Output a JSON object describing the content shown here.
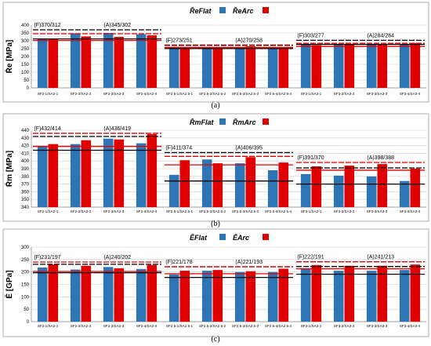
{
  "chart_data": [
    {
      "type": "bar",
      "panel_label": "(a)",
      "ylabel": "R̄e [MPa]",
      "ylim": [
        0,
        400
      ],
      "yticks": [
        0,
        50,
        100,
        150,
        200,
        250,
        300,
        350,
        400
      ],
      "grid": true,
      "legend_position": "top-center",
      "categories": [
        "SF2-1/SA2-1",
        "SF2-2/SA2-2",
        "SF2-3/SA2-3",
        "SF2-4/SA2-4",
        "SF2.5-1/SA2.5-1",
        "SF2.5-2/SA2.5-2",
        "SF2.5-3/SA2.5-3",
        "SF2.5-4/SA2.5-4",
        "SF3-1/SA3-1",
        "SF3-2/SA3-2",
        "SF3-3/SA3-3",
        "SF3-4/SA3-4"
      ],
      "series": [
        {
          "name": "R̄eFlat",
          "color": "#2E75B6",
          "values": [
            315,
            348,
            350,
            342,
            258,
            255,
            253,
            252,
            275,
            280,
            280,
            275
          ]
        },
        {
          "name": "R̄eArc",
          "color": "#E00000",
          "values": [
            310,
            328,
            325,
            335,
            257,
            253,
            265,
            260,
            272,
            275,
            276,
            285
          ]
        }
      ],
      "annotations": [
        {
          "label": "(F)370/312",
          "group": 0
        },
        {
          "label": "(A)345/302",
          "group": 0
        },
        {
          "label": "(F)273/251",
          "group": 1
        },
        {
          "label": "(A)270/258",
          "group": 1
        },
        {
          "label": "(F)303/277",
          "group": 2
        },
        {
          "label": "(A)284/264",
          "group": 2
        }
      ],
      "reference_lines": [
        {
          "group": 0,
          "value": 370,
          "style": "dashed",
          "color": "#000000"
        },
        {
          "group": 0,
          "value": 345,
          "style": "dashed",
          "color": "#E00000"
        },
        {
          "group": 0,
          "value": 312,
          "style": "solid",
          "color": "#000000"
        },
        {
          "group": 0,
          "value": 302,
          "style": "solid",
          "color": "#E00000"
        },
        {
          "group": 1,
          "value": 273,
          "style": "dashed",
          "color": "#000000"
        },
        {
          "group": 1,
          "value": 270,
          "style": "dashed",
          "color": "#E00000"
        },
        {
          "group": 1,
          "value": 258,
          "style": "solid",
          "color": "#E00000"
        },
        {
          "group": 1,
          "value": 251,
          "style": "solid",
          "color": "#000000"
        },
        {
          "group": 2,
          "value": 303,
          "style": "dashed",
          "color": "#000000"
        },
        {
          "group": 2,
          "value": 284,
          "style": "dashed",
          "color": "#E00000"
        },
        {
          "group": 2,
          "value": 277,
          "style": "solid",
          "color": "#000000"
        },
        {
          "group": 2,
          "value": 264,
          "style": "solid",
          "color": "#E00000"
        }
      ]
    },
    {
      "type": "bar",
      "panel_label": "(b)",
      "ylabel": "R̄m [MPa]",
      "ylim": [
        340,
        440
      ],
      "yticks": [
        340,
        350,
        360,
        370,
        380,
        390,
        400,
        410,
        420,
        430,
        440
      ],
      "grid": true,
      "legend_position": "top-center",
      "categories": [
        "SF2-1/SA2-1",
        "SF2-2/SA2-2",
        "SF2-3/SA2-3",
        "SF2-4/SA2-4",
        "SF2.5-1/SA2.5-1",
        "SF2.5-2/SA2.5-2",
        "SF2.5-3/SA2.5-3",
        "SF2.5-4/SA2.5-4",
        "SF3-1/SA3-1",
        "SF3-2/SA3-2",
        "SF3-3/SA3-3",
        "SF3-4/SA3-4"
      ],
      "series": [
        {
          "name": "R̄mFlat",
          "color": "#2E75B6",
          "values": [
            419,
            422,
            429,
            423,
            382,
            402,
            397,
            388,
            383,
            381,
            380,
            374
          ]
        },
        {
          "name": "R̄mArc",
          "color": "#E00000",
          "values": [
            422,
            427,
            428,
            435,
            401,
            397,
            405,
            398,
            393,
            394,
            396,
            390
          ]
        }
      ],
      "annotations": [
        {
          "label": "(F)432/414",
          "group": 0
        },
        {
          "label": "(A)436/419",
          "group": 0
        },
        {
          "label": "(F)411/374",
          "group": 1
        },
        {
          "label": "(A)406/395",
          "group": 1
        },
        {
          "label": "(F)391/370",
          "group": 2
        },
        {
          "label": "(A)398/388",
          "group": 2
        }
      ],
      "reference_lines": [
        {
          "group": 0,
          "value": 436,
          "style": "dashed",
          "color": "#E00000"
        },
        {
          "group": 0,
          "value": 432,
          "style": "dashed",
          "color": "#000000"
        },
        {
          "group": 0,
          "value": 419,
          "style": "solid",
          "color": "#E00000"
        },
        {
          "group": 0,
          "value": 414,
          "style": "solid",
          "color": "#000000"
        },
        {
          "group": 1,
          "value": 411,
          "style": "dashed",
          "color": "#000000"
        },
        {
          "group": 1,
          "value": 406,
          "style": "dashed",
          "color": "#E00000"
        },
        {
          "group": 1,
          "value": 395,
          "style": "solid",
          "color": "#E00000"
        },
        {
          "group": 1,
          "value": 374,
          "style": "solid",
          "color": "#000000"
        },
        {
          "group": 2,
          "value": 398,
          "style": "dashed",
          "color": "#E00000"
        },
        {
          "group": 2,
          "value": 391,
          "style": "dashed",
          "color": "#000000"
        },
        {
          "group": 2,
          "value": 388,
          "style": "solid",
          "color": "#E00000"
        },
        {
          "group": 2,
          "value": 370,
          "style": "solid",
          "color": "#000000"
        }
      ]
    },
    {
      "type": "bar",
      "panel_label": "(c)",
      "ylabel": "Ē [GPa]",
      "ylim": [
        0,
        300
      ],
      "yticks": [
        0,
        50,
        100,
        150,
        200,
        250,
        300
      ],
      "grid": true,
      "legend_position": "top-center",
      "categories": [
        "SF2-1/SA2-1",
        "SF2-2/SA2-2",
        "SF2-3/SA2-3",
        "SF2-4/SA2-4",
        "SF2.5-1/SA2.5-1",
        "SF2.5-2/SA2.5-2",
        "SF2.5-3/SA2.5-3",
        "SF2.5-4/SA2.5-4",
        "SF3-1/SA3-1",
        "SF3-2/SA3-2",
        "SF3-3/SA3-3",
        "SF3-4/SA3-4"
      ],
      "series": [
        {
          "name": "ĒFlat",
          "color": "#2E75B6",
          "values": [
            218,
            210,
            220,
            212,
            190,
            205,
            200,
            200,
            212,
            205,
            205,
            208
          ]
        },
        {
          "name": "ĒArc",
          "color": "#E00000",
          "values": [
            230,
            225,
            215,
            228,
            205,
            208,
            203,
            213,
            228,
            225,
            225,
            230
          ]
        }
      ],
      "annotations": [
        {
          "label": "(F)231/197",
          "group": 0
        },
        {
          "label": "(A)240/202",
          "group": 0
        },
        {
          "label": "(F)221/178",
          "group": 1
        },
        {
          "label": "(A)221/193",
          "group": 1
        },
        {
          "label": "(F)222/191",
          "group": 2
        },
        {
          "label": "(A)241/213",
          "group": 2
        }
      ],
      "reference_lines": [
        {
          "group": 0,
          "value": 240,
          "style": "dashed",
          "color": "#E00000"
        },
        {
          "group": 0,
          "value": 231,
          "style": "dashed",
          "color": "#000000"
        },
        {
          "group": 0,
          "value": 202,
          "style": "solid",
          "color": "#E00000"
        },
        {
          "group": 0,
          "value": 197,
          "style": "solid",
          "color": "#000000"
        },
        {
          "group": 1,
          "value": 221,
          "style": "dashed",
          "color": "#000000"
        },
        {
          "group": 1,
          "value": 221,
          "style": "dashed",
          "color": "#E00000"
        },
        {
          "group": 1,
          "value": 193,
          "style": "solid",
          "color": "#E00000"
        },
        {
          "group": 1,
          "value": 178,
          "style": "solid",
          "color": "#000000"
        },
        {
          "group": 2,
          "value": 241,
          "style": "dashed",
          "color": "#E00000"
        },
        {
          "group": 2,
          "value": 222,
          "style": "dashed",
          "color": "#000000"
        },
        {
          "group": 2,
          "value": 213,
          "style": "solid",
          "color": "#E00000"
        },
        {
          "group": 2,
          "value": 191,
          "style": "solid",
          "color": "#000000"
        }
      ]
    }
  ]
}
